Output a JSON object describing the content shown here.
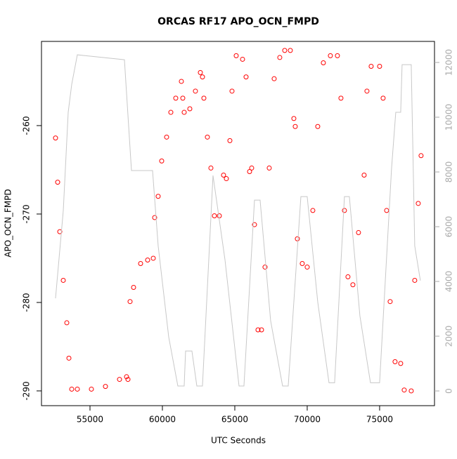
{
  "chart_data": {
    "type": "scatter",
    "title": "ORCAS RF17 APO_OCN_FMPD",
    "xlabel": "UTC Seconds",
    "ylabel": "APO_OCN_FMPD",
    "xlim": [
      51650,
      78790
    ],
    "xticks": [
      55000,
      60000,
      65000,
      70000,
      75000
    ],
    "ylim": [
      -291.67,
      -250.48
    ],
    "yticks": [
      -290,
      -280,
      -270,
      -260
    ],
    "y2lim": [
      -538,
      12769
    ],
    "y2ticks": [
      0,
      2000,
      4000,
      6000,
      8000,
      10000,
      12000
    ],
    "series": [
      {
        "color": "#ff0000",
        "marker": "open-circle",
        "x": [
          52620,
          52767,
          52913,
          53155,
          53398,
          53544,
          53738,
          54126,
          55097,
          56068,
          57039,
          57524,
          57621,
          57767,
          58009,
          58495,
          58980,
          59369,
          59466,
          59708,
          59951,
          60291,
          60582,
          60922,
          61310,
          61408,
          61505,
          61893,
          62281,
          62621,
          62767,
          62864,
          63106,
          63349,
          63592,
          63932,
          64223,
          64417,
          64660,
          64806,
          65097,
          65534,
          65777,
          66019,
          66165,
          66359,
          66602,
          66845,
          67087,
          67378,
          67718,
          68106,
          68446,
          68834,
          69077,
          69174,
          69320,
          69659,
          69999,
          70387,
          70727,
          71115,
          71601,
          72086,
          72329,
          72571,
          72814,
          73154,
          73542,
          73931,
          74125,
          74416,
          74999,
          75241,
          75484,
          75727,
          76066,
          76455,
          76698,
          77183,
          77425,
          77668,
          77862
        ],
        "values": [
          -261.4,
          -266.4,
          -272,
          -277.5,
          -282.3,
          -286.3,
          -289.8,
          -289.8,
          -289.8,
          -289.5,
          -288.7,
          -288.4,
          -288.7,
          -279.9,
          -278.3,
          -275.6,
          -275.2,
          -275,
          -270.4,
          -268,
          -264,
          -261.3,
          -258.5,
          -256.9,
          -255,
          -256.9,
          -258.5,
          -258.1,
          -256.1,
          -254,
          -254.5,
          -256.9,
          -261.3,
          -264.8,
          -270.2,
          -270.2,
          -265.6,
          -266,
          -261.7,
          -256.1,
          -252.1,
          -252.5,
          -254.5,
          -265.2,
          -264.8,
          -271.2,
          -283.1,
          -283.1,
          -276,
          -264.8,
          -254.7,
          -252.3,
          -251.5,
          -251.5,
          -259.2,
          -260.1,
          -272.8,
          -275.6,
          -276,
          -269.6,
          -260.1,
          -252.9,
          -252.1,
          -252.1,
          -256.9,
          -269.6,
          -277.1,
          -278,
          -272.1,
          -265.6,
          -256.1,
          -253.3,
          -253.3,
          -256.9,
          -269.6,
          -279.9,
          -286.7,
          -286.9,
          -289.9,
          -290,
          -277.5,
          -268.8,
          -263.4
        ]
      },
      {
        "color": "#c8c8c8",
        "marker": "line",
        "axis": "y2",
        "x": [
          52620,
          53156,
          53495,
          53738,
          54126,
          57378,
          57864,
          59320,
          59708,
          60436,
          61067,
          61504,
          61601,
          62038,
          62378,
          62766,
          63494,
          64320,
          65291,
          65631,
          66359,
          66747,
          67475,
          68300,
          68689,
          69563,
          69999,
          70727,
          71504,
          71892,
          72571,
          72911,
          73640,
          74368,
          74999,
          75824,
          76115,
          76455,
          76552,
          77183,
          77425,
          77814
        ],
        "values": [
          3385,
          6590,
          10180,
          11200,
          12280,
          12100,
          8050,
          8050,
          5300,
          1970,
          180,
          180,
          1460,
          1460,
          180,
          180,
          7870,
          4800,
          180,
          180,
          6970,
          6970,
          2560,
          180,
          180,
          7100,
          7100,
          3250,
          300,
          300,
          7100,
          7100,
          2740,
          300,
          300,
          8130,
          10180,
          10180,
          11920,
          11920,
          5300,
          4030
        ]
      }
    ]
  }
}
